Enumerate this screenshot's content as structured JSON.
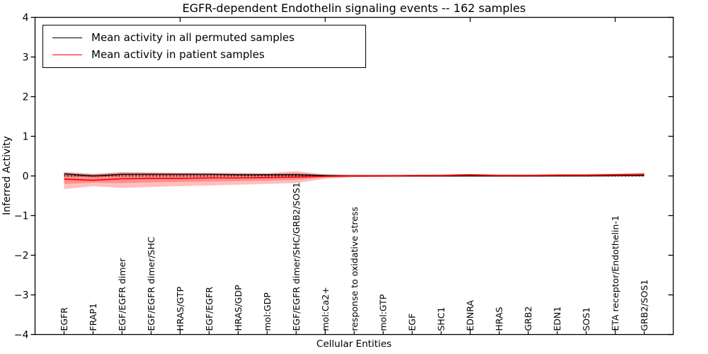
{
  "title": "EGFR-dependent Endothelin signaling events -- 162 samples",
  "legend": {
    "items": [
      {
        "label": "Mean activity in all permuted samples",
        "color": "#000000"
      },
      {
        "label": "Mean activity in patient samples",
        "color": "#ff0000"
      }
    ]
  },
  "chart_data": {
    "type": "line",
    "title": "EGFR-dependent Endothelin signaling events -- 162 samples",
    "sample_count": 162,
    "xlabel": "Cellular Entities",
    "ylabel": "Inferred Activity",
    "ylim": [
      -4,
      4
    ],
    "xlim": [
      -1,
      21
    ],
    "yticks": [
      4,
      3,
      2,
      1,
      0,
      -1,
      -2,
      -3,
      -4
    ],
    "ytick_labels": [
      "4",
      "3",
      "2",
      "1",
      "0",
      "−1",
      "−2",
      "−3",
      "−4"
    ],
    "x_major_tick_indices": [
      4,
      9,
      14,
      19
    ],
    "grid": false,
    "legend_position": "upper left",
    "zero_line": {
      "y": 0,
      "style": "dotted",
      "color": "#000000"
    },
    "categories": [
      "EGFR",
      "FRAP1",
      "EGF/EGFR dimer",
      "EGF/EGFR dimer/SHC",
      "HRAS/GTP",
      "EGF/EGFR",
      "HRAS/GDP",
      "mol:GDP",
      "EGF/EGFR dimer/SHC/GRB2/SOS1",
      "mol:Ca2+",
      "response to oxidative stress",
      "mol:GTP",
      "EGF",
      "SHC1",
      "EDNRA",
      "HRAS",
      "GRB2",
      "EDN1",
      "SOS1",
      "ETA receptor/Endothelin-1",
      "GRB2/SOS1"
    ],
    "series": [
      {
        "name": "Mean activity in all permuted samples",
        "color": "#000000",
        "values": [
          0.05,
          0.0,
          0.04,
          0.04,
          0.04,
          0.04,
          0.03,
          0.03,
          0.03,
          0.01,
          0.0,
          0.0,
          0.0,
          0.0,
          0.0,
          0.0,
          0.0,
          0.0,
          0.0,
          0.01,
          0.01
        ]
      },
      {
        "name": "Mean activity in patient samples",
        "color": "#ff0000",
        "values": [
          -0.08,
          -0.11,
          -0.07,
          -0.06,
          -0.06,
          -0.05,
          -0.05,
          -0.04,
          -0.03,
          -0.01,
          0.0,
          0.0,
          0.01,
          0.01,
          0.03,
          0.01,
          0.01,
          0.02,
          0.02,
          0.03,
          0.04
        ]
      }
    ],
    "bands": [
      {
        "name": "permuted-std",
        "color": "rgba(128,128,128,0.40)",
        "upper": [
          0.09,
          0.05,
          0.08,
          0.08,
          0.07,
          0.07,
          0.06,
          0.06,
          0.06,
          0.04,
          0.03,
          0.03,
          0.03,
          0.03,
          0.03,
          0.03,
          0.03,
          0.03,
          0.03,
          0.04,
          0.05
        ],
        "lower": [
          0.0,
          -0.04,
          0.0,
          0.0,
          0.0,
          0.0,
          0.0,
          0.0,
          0.0,
          -0.02,
          -0.03,
          -0.03,
          -0.03,
          -0.03,
          -0.02,
          -0.03,
          -0.03,
          -0.02,
          -0.02,
          -0.02,
          -0.01
        ]
      },
      {
        "name": "patient-std-outer",
        "color": "rgba(255,0,0,0.25)",
        "upper": [
          0.1,
          0.05,
          0.1,
          0.09,
          0.08,
          0.08,
          0.08,
          0.07,
          0.12,
          0.04,
          0.03,
          0.03,
          0.03,
          0.04,
          0.05,
          0.04,
          0.04,
          0.05,
          0.05,
          0.06,
          0.08
        ],
        "lower": [
          -0.33,
          -0.26,
          -0.3,
          -0.28,
          -0.26,
          -0.24,
          -0.22,
          -0.2,
          -0.18,
          -0.07,
          -0.03,
          -0.02,
          -0.02,
          -0.02,
          -0.01,
          -0.02,
          -0.02,
          -0.01,
          -0.01,
          0.0,
          0.0
        ]
      },
      {
        "name": "patient-std-inner",
        "color": "rgba(255,0,0,0.25)",
        "upper": [
          0.07,
          0.03,
          0.07,
          0.06,
          0.06,
          0.05,
          0.05,
          0.05,
          0.08,
          0.02,
          0.02,
          0.02,
          0.02,
          0.03,
          0.04,
          0.03,
          0.03,
          0.03,
          0.03,
          0.04,
          0.06
        ],
        "lower": [
          -0.2,
          -0.17,
          -0.18,
          -0.16,
          -0.15,
          -0.14,
          -0.13,
          -0.12,
          -0.1,
          -0.04,
          -0.02,
          -0.01,
          -0.01,
          0.0,
          0.01,
          0.0,
          0.0,
          0.01,
          0.01,
          0.02,
          0.02
        ]
      }
    ]
  }
}
